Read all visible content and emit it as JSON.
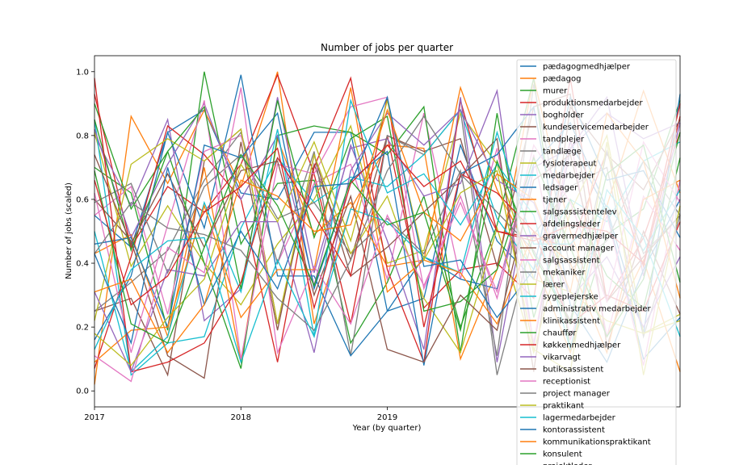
{
  "chart_data": {
    "type": "line",
    "title": "Number of jobs per quarter",
    "xlabel": "Year (by quarter)",
    "ylabel": "Number of jobs (scaled)",
    "x": [
      "2017Q1",
      "2017Q2",
      "2017Q3",
      "2017Q4",
      "2018Q1",
      "2018Q2",
      "2018Q3",
      "2018Q4",
      "2019Q1",
      "2019Q2",
      "2019Q3",
      "2019Q4",
      "2020Q1",
      "2020Q2",
      "2020Q3",
      "2020Q4",
      "2021Q1"
    ],
    "x_ticks": [
      {
        "label": "2017",
        "value": "2017Q1"
      },
      {
        "label": "2018",
        "value": "2018Q1"
      },
      {
        "label": "2019",
        "value": "2019Q1"
      }
    ],
    "y_ticks": [
      "0.0",
      "0.2",
      "0.4",
      "0.6",
      "0.8",
      "1.0"
    ],
    "ylim": [
      -0.05,
      1.05
    ],
    "grid": false,
    "legend_position": "top-right",
    "series": [
      {
        "name": "pædagogmedhjælper",
        "color": "#1f77b4",
        "values": [
          0.55,
          0.45,
          0.81,
          0.88,
          0.62,
          0.6,
          0.81,
          0.81,
          0.25,
          0.29,
          0.77,
          0.47,
          0.35,
          0.78,
          0.56,
          0.1,
          0.23
        ]
      },
      {
        "name": "pædagog",
        "color": "#ff7f0e",
        "values": [
          0.02,
          0.86,
          0.65,
          0.88,
          0.64,
          1.0,
          0.21,
          0.57,
          0.77,
          0.76,
          0.1,
          0.38,
          0.98,
          0.5,
          0.17,
          0.41,
          0.06
        ]
      },
      {
        "name": "murer",
        "color": "#2ca02c",
        "values": [
          0.7,
          0.62,
          0.19,
          1.0,
          0.46,
          0.65,
          0.66,
          0.15,
          0.34,
          0.61,
          0.2,
          0.52,
          0.98,
          0.12,
          0.49,
          0.57,
          0.91
        ]
      },
      {
        "name": "produktionsmedarbejder",
        "color": "#d62728",
        "values": [
          0.93,
          0.45,
          0.64,
          0.56,
          0.71,
          0.99,
          0.68,
          0.21,
          0.8,
          0.26,
          0.38,
          0.4,
          0.29,
          0.98,
          0.28,
          0.48,
          0.81
        ]
      },
      {
        "name": "bogholder",
        "color": "#9467bd",
        "values": [
          0.8,
          0.58,
          0.85,
          0.22,
          0.32,
          0.92,
          0.37,
          0.76,
          0.79,
          0.61,
          0.65,
          0.94,
          0.14,
          0.76,
          0.92,
          0.36,
          0.84
        ]
      },
      {
        "name": "kundeservicemedarbejder",
        "color": "#8c564b",
        "values": [
          0.25,
          0.29,
          0.05,
          0.72,
          0.82,
          0.21,
          0.71,
          0.41,
          0.8,
          0.75,
          0.79,
          0.39,
          0.89,
          0.93,
          0.14,
          0.5,
          0.24
        ]
      },
      {
        "name": "tandplejer",
        "color": "#e377c2",
        "values": [
          0.55,
          0.64,
          0.24,
          0.75,
          0.8,
          0.4,
          0.65,
          0.71,
          0.35,
          0.87,
          0.35,
          0.76,
          0.15,
          0.79,
          0.17,
          0.61,
          0.44
        ]
      },
      {
        "name": "tandlæge",
        "color": "#7f7f7f",
        "values": [
          0.25,
          0.34,
          0.44,
          0.66,
          0.81,
          0.4,
          0.75,
          0.11,
          0.8,
          0.74,
          0.88,
          0.05,
          0.49,
          0.64,
          0.7,
          0.17,
          0.55
        ]
      },
      {
        "name": "fysioterapeut",
        "color": "#bcbd22",
        "values": [
          0.81,
          0.39,
          0.58,
          0.4,
          0.27,
          0.46,
          0.6,
          0.83,
          0.4,
          0.44,
          0.87,
          0.71,
          0.35,
          0.31,
          0.22,
          0.18,
          0.22
        ]
      },
      {
        "name": "medarbejder",
        "color": "#17becf",
        "values": [
          0.85,
          0.05,
          0.15,
          0.17,
          0.51,
          0.73,
          0.59,
          0.67,
          0.64,
          0.74,
          0.88,
          0.54,
          0.38,
          0.6,
          0.53,
          0.72,
          0.78
        ]
      },
      {
        "name": "ledsager",
        "color": "#1f77b4",
        "values": [
          0.16,
          0.36,
          0.81,
          0.51,
          0.99,
          0.36,
          0.36,
          0.11,
          0.25,
          0.42,
          0.35,
          0.32,
          0.71,
          0.84,
          0.57,
          0.18,
          0.93
        ]
      },
      {
        "name": "tjener",
        "color": "#ff7f0e",
        "values": [
          0.43,
          0.49,
          0.17,
          0.7,
          0.09,
          0.79,
          0.49,
          0.59,
          0.39,
          0.41,
          0.95,
          0.63,
          0.41,
          0.12,
          0.58,
          0.94,
          0.62
        ]
      },
      {
        "name": "salgsassistentelev",
        "color": "#2ca02c",
        "values": [
          0.9,
          0.57,
          0.75,
          0.4,
          0.07,
          0.8,
          0.83,
          0.81,
          0.74,
          0.89,
          0.12,
          0.87,
          0.23,
          0.6,
          0.36,
          0.26,
          0.73
        ]
      },
      {
        "name": "afdelingsleder",
        "color": "#d62728",
        "values": [
          0.07,
          0.42,
          0.83,
          0.74,
          0.6,
          0.09,
          0.7,
          0.98,
          0.38,
          0.09,
          0.91,
          0.5,
          0.48,
          0.45,
          0.75,
          0.39,
          0.86
        ]
      },
      {
        "name": "gravermedhjælper",
        "color": "#9467bd",
        "values": [
          0.82,
          0.48,
          0.71,
          0.9,
          0.6,
          0.8,
          0.33,
          0.77,
          0.47,
          0.13,
          0.92,
          0.09,
          0.7,
          0.76,
          0.87,
          0.79,
          0.84
        ]
      },
      {
        "name": "account manager",
        "color": "#8c564b",
        "values": [
          0.6,
          0.47,
          0.11,
          0.04,
          0.78,
          0.19,
          0.74,
          0.36,
          0.45,
          0.56,
          0.67,
          0.79,
          0.06,
          0.89,
          0.74,
          0.63,
          0.85
        ]
      },
      {
        "name": "salgsassistent",
        "color": "#e377c2",
        "values": [
          0.62,
          0.12,
          0.52,
          0.91,
          0.1,
          0.71,
          0.68,
          0.89,
          0.92,
          0.32,
          0.61,
          0.29,
          0.74,
          0.16,
          0.55,
          0.08,
          0.66
        ]
      },
      {
        "name": "mekaniker",
        "color": "#7f7f7f",
        "values": [
          0.59,
          0.65,
          0.37,
          0.64,
          0.74,
          0.54,
          0.59,
          0.43,
          0.54,
          0.43,
          0.69,
          0.11,
          0.96,
          0.38,
          0.47,
          0.72,
          0.55
        ]
      },
      {
        "name": "lærer",
        "color": "#bcbd22",
        "values": [
          0.22,
          0.71,
          0.79,
          0.72,
          0.82,
          0.21,
          0.74,
          0.43,
          0.61,
          0.29,
          0.12,
          0.51,
          0.12,
          0.56,
          0.8,
          0.18,
          0.24
        ]
      },
      {
        "name": "sygeplejerske",
        "color": "#17becf",
        "values": [
          0.5,
          0.06,
          0.17,
          0.59,
          0.31,
          0.82,
          0.17,
          0.57,
          0.53,
          0.42,
          0.37,
          0.81,
          0.46,
          0.46,
          0.58,
          0.44,
          0.63
        ]
      },
      {
        "name": "administrativ medarbejder",
        "color": "#1f77b4",
        "values": [
          0.46,
          0.48,
          0.2,
          0.77,
          0.73,
          0.87,
          0.32,
          0.66,
          0.75,
          0.08,
          0.68,
          0.74,
          0.89,
          0.27,
          0.09,
          0.38,
          0.6
        ]
      },
      {
        "name": "klinikassistent",
        "color": "#ff7f0e",
        "values": [
          0.09,
          0.19,
          0.2,
          0.58,
          0.23,
          0.38,
          0.38,
          0.95,
          0.31,
          0.41,
          0.37,
          0.21,
          0.5,
          0.4,
          0.12,
          0.6,
          0.66
        ]
      },
      {
        "name": "chauffør",
        "color": "#2ca02c",
        "values": [
          0.85,
          0.44,
          0.75,
          0.89,
          0.32,
          0.91,
          0.48,
          0.79,
          0.86,
          0.25,
          0.28,
          0.38,
          0.73,
          0.45,
          0.17,
          0.35,
          0.81
        ]
      },
      {
        "name": "køkkenmedhjælper",
        "color": "#d62728",
        "values": [
          0.98,
          0.06,
          0.09,
          0.15,
          0.34,
          0.73,
          0.55,
          0.36,
          0.92,
          0.2,
          0.68,
          0.62,
          0.5,
          0.21,
          0.3,
          0.25,
          0.53
        ]
      },
      {
        "name": "vikarvagt",
        "color": "#9467bd",
        "values": [
          0.31,
          0.06,
          0.38,
          0.36,
          0.53,
          0.53,
          0.12,
          0.69,
          0.87,
          0.77,
          0.88,
          0.66,
          0.59,
          0.29,
          0.42,
          0.2,
          0.42
        ]
      },
      {
        "name": "butiksassistent",
        "color": "#8c564b",
        "values": [
          0.74,
          0.46,
          0.68,
          0.45,
          0.69,
          0.72,
          0.3,
          0.61,
          0.13,
          0.09,
          0.3,
          0.19,
          0.66,
          0.74,
          0.28,
          0.42,
          0.55
        ]
      },
      {
        "name": "receptionist",
        "color": "#e377c2",
        "values": [
          0.11,
          0.03,
          0.45,
          0.37,
          0.95,
          0.12,
          0.39,
          0.21,
          0.55,
          0.33,
          0.59,
          0.31,
          0.77,
          0.59,
          0.28,
          0.78,
          0.59
        ]
      },
      {
        "name": "project manager",
        "color": "#7f7f7f",
        "values": [
          0.43,
          0.59,
          0.51,
          0.49,
          0.44,
          0.29,
          0.19,
          0.41,
          0.69,
          0.86,
          0.68,
          0.56,
          0.44,
          0.22,
          0.75,
          0.43,
          0.55
        ]
      },
      {
        "name": "praktikant",
        "color": "#bcbd22",
        "values": [
          0.18,
          0.08,
          0.23,
          0.35,
          0.71,
          0.53,
          0.78,
          0.47,
          0.91,
          0.41,
          0.62,
          0.69,
          0.13,
          0.06,
          0.78,
          0.05,
          0.58
        ]
      },
      {
        "name": "lagermedarbejder",
        "color": "#17becf",
        "values": [
          0.13,
          0.38,
          0.47,
          0.48,
          0.09,
          0.41,
          0.17,
          0.91,
          0.62,
          0.68,
          0.52,
          0.71,
          0.55,
          0.13,
          0.63,
          0.48,
          0.17
        ]
      },
      {
        "name": "kontorassistent",
        "color": "#1f77b4",
        "values": [
          0.43,
          0.15,
          0.7,
          0.27,
          0.5,
          0.32,
          0.64,
          0.65,
          0.92,
          0.39,
          0.41,
          0.23,
          0.38,
          0.92,
          0.66,
          0.69,
          0.48
        ]
      },
      {
        "name": "kommunikationspraktikant",
        "color": "#ff7f0e",
        "values": [
          0.31,
          0.35,
          0.12,
          0.27,
          0.66,
          0.61,
          0.5,
          0.52,
          0.88,
          0.56,
          0.47,
          0.68,
          0.6,
          0.31,
          0.87,
          0.72,
          0.29
        ]
      },
      {
        "name": "konsulent",
        "color": "#2ca02c",
        "values": [
          0.69,
          0.21,
          0.15,
          0.45,
          0.74,
          0.58,
          0.33,
          0.66,
          0.52,
          0.56,
          0.19,
          0.72,
          0.43,
          0.21,
          0.68,
          0.77,
          0.34
        ]
      },
      {
        "name": "projektleder",
        "color": "#d62728",
        "values": [
          0.66,
          0.27,
          0.36,
          0.56,
          0.64,
          0.76,
          0.26,
          0.65,
          0.77,
          0.64,
          0.72,
          0.5,
          0.47,
          0.52,
          0.5,
          0.4,
          0.9
        ]
      }
    ]
  }
}
